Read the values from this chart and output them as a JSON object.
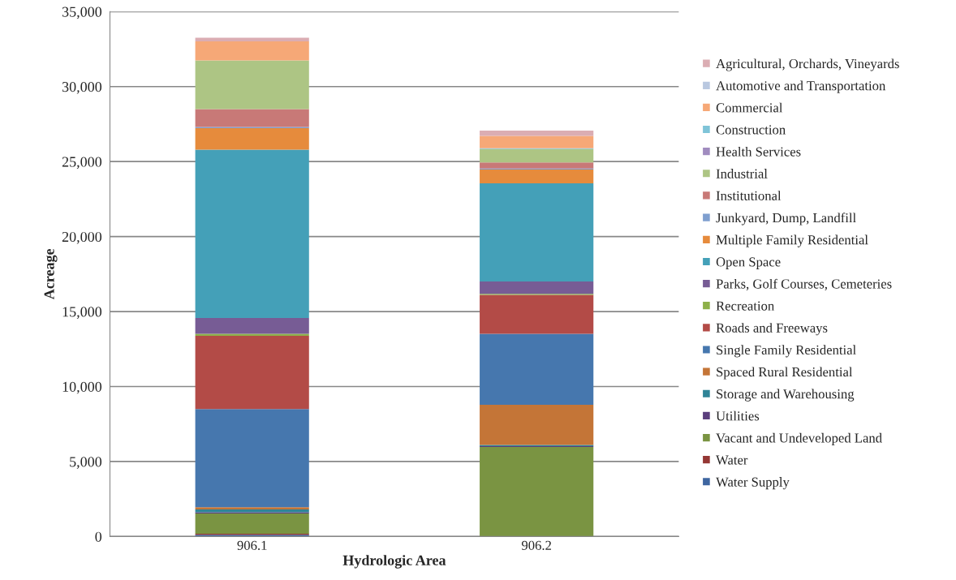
{
  "chart_data": {
    "type": "bar",
    "stacked": true,
    "xlabel": "Hydrologic Area",
    "ylabel": "Acreage",
    "categories": [
      "906.1",
      "906.2"
    ],
    "ylim": [
      0,
      35000
    ],
    "yticks": [
      {
        "value": 0,
        "label": "0"
      },
      {
        "value": 5000,
        "label": "5,000"
      },
      {
        "value": 10000,
        "label": "10,000"
      },
      {
        "value": 15000,
        "label": "15,000"
      },
      {
        "value": 20000,
        "label": "20,000"
      },
      {
        "value": 25000,
        "label": "25,000"
      },
      {
        "value": 30000,
        "label": "30,000"
      },
      {
        "value": 35000,
        "label": "35,000"
      }
    ],
    "grid": "y",
    "legend": "right",
    "series": [
      {
        "name": "Water Supply",
        "color": "#3e66a0",
        "values": [
          120,
          0
        ]
      },
      {
        "name": "Water",
        "color": "#953734",
        "values": [
          60,
          0
        ]
      },
      {
        "name": "Vacant and Undeveloped Land",
        "color": "#7a9442",
        "values": [
          1350,
          5970
        ]
      },
      {
        "name": "Utilities",
        "color": "#5b3f7d",
        "values": [
          80,
          60
        ]
      },
      {
        "name": "Storage and Warehousing",
        "color": "#2f8497",
        "values": [
          200,
          80
        ]
      },
      {
        "name": "Spaced Rural Residential",
        "color": "#c47537",
        "values": [
          140,
          2670
        ]
      },
      {
        "name": "Single Family Residential",
        "color": "#4677ae",
        "values": [
          6550,
          4730
        ]
      },
      {
        "name": "Roads and Freeways",
        "color": "#b34b47",
        "values": [
          4880,
          2600
        ]
      },
      {
        "name": "Recreation",
        "color": "#8eb049",
        "values": [
          130,
          70
        ]
      },
      {
        "name": "Parks, Golf Courses, Cemeteries",
        "color": "#775c95",
        "values": [
          1060,
          820
        ]
      },
      {
        "name": "Open Space",
        "color": "#44a0b8",
        "values": [
          11220,
          6550
        ]
      },
      {
        "name": "Multiple Family Residential",
        "color": "#e68b3c",
        "values": [
          1440,
          920
        ]
      },
      {
        "name": "Junkyard, Dump, Landfill",
        "color": "#7f9fcf",
        "values": [
          80,
          70
        ]
      },
      {
        "name": "Institutional",
        "color": "#c87977",
        "values": [
          1190,
          400
        ]
      },
      {
        "name": "Industrial",
        "color": "#adc584",
        "values": [
          3250,
          900
        ]
      },
      {
        "name": "Health Services",
        "color": "#a08cbf",
        "values": [
          0,
          0
        ]
      },
      {
        "name": "Construction",
        "color": "#7fc4d8",
        "values": [
          null,
          50
        ]
      },
      {
        "name": "Commercial",
        "color": "#f6a877",
        "values": [
          1270,
          830
        ]
      },
      {
        "name": "Automotive and Transportation",
        "color": "#b9c8e0",
        "values": [
          null,
          null
        ]
      },
      {
        "name": "Agricultural, Orchards, Vineyards",
        "color": "#dbadb3",
        "values": [
          240,
          350
        ]
      }
    ]
  }
}
